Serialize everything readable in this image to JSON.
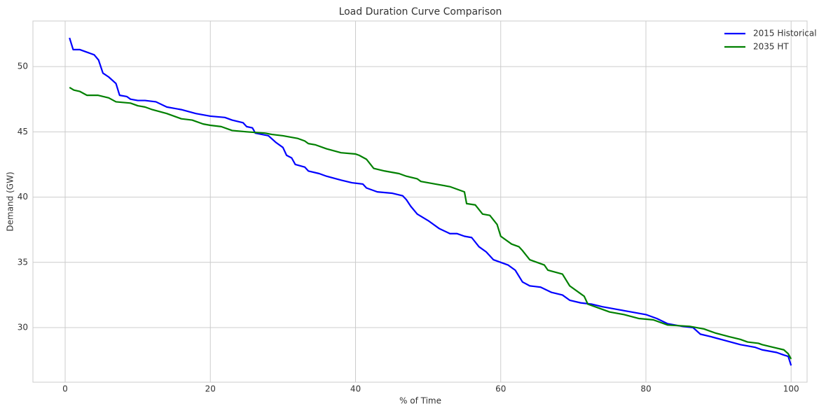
{
  "chart_data": {
    "type": "line",
    "title": "Load Duration Curve Comparison",
    "xlabel": "% of Time",
    "ylabel": "Demand (GW)",
    "xlim": [
      -4.44,
      102.2
    ],
    "ylim": [
      25.82,
      53.49
    ],
    "xticks": [
      0,
      20,
      40,
      60,
      80,
      100
    ],
    "yticks": [
      30,
      35,
      40,
      45,
      50
    ],
    "grid": true,
    "legend": "upper right",
    "series": [
      {
        "name": "2015 Historical",
        "color": "#0000ff",
        "x": [
          0.6,
          1.1,
          2,
          3,
          4,
          4.6,
          5.2,
          6,
          7,
          7.5,
          8.5,
          9,
          10,
          11,
          12.5,
          14,
          16,
          18,
          20,
          22,
          23,
          24.5,
          25,
          25.8,
          26.2,
          28,
          29,
          30,
          30.5,
          31.2,
          31.7,
          33,
          33.5,
          35,
          36,
          38,
          39.5,
          41,
          41.5,
          43,
          45,
          46.5,
          47,
          47.6,
          48.5,
          50,
          51.5,
          53,
          54,
          55,
          56,
          57,
          58,
          59,
          60,
          61,
          62,
          63,
          64,
          65.5,
          67,
          68.5,
          69.5,
          71,
          72.5,
          74,
          76,
          78,
          80,
          81.5,
          83,
          85,
          86.5,
          87.5,
          89,
          91,
          93,
          95,
          96,
          98,
          99,
          99.6,
          100
        ],
        "values": [
          52.2,
          51.3,
          51.3,
          51.1,
          50.9,
          50.5,
          49.5,
          49.2,
          48.7,
          47.8,
          47.7,
          47.5,
          47.4,
          47.4,
          47.3,
          46.9,
          46.7,
          46.4,
          46.2,
          46.1,
          45.9,
          45.7,
          45.4,
          45.3,
          44.9,
          44.7,
          44.2,
          43.8,
          43.2,
          43.0,
          42.5,
          42.3,
          42.0,
          41.8,
          41.6,
          41.3,
          41.1,
          41.0,
          40.7,
          40.4,
          40.3,
          40.1,
          39.8,
          39.3,
          38.7,
          38.2,
          37.6,
          37.2,
          37.2,
          37.0,
          36.9,
          36.2,
          35.8,
          35.2,
          35.0,
          34.8,
          34.4,
          33.5,
          33.2,
          33.1,
          32.7,
          32.5,
          32.1,
          31.9,
          31.8,
          31.6,
          31.4,
          31.2,
          31.0,
          30.7,
          30.3,
          30.1,
          30.0,
          29.5,
          29.3,
          29.0,
          28.7,
          28.5,
          28.3,
          28.1,
          27.9,
          27.8,
          27.1
        ]
      },
      {
        "name": "2035 HT",
        "color": "#008000",
        "x": [
          0.6,
          1.2,
          2,
          3,
          4.5,
          6,
          7,
          9,
          10,
          11,
          12,
          14,
          16,
          17.5,
          19,
          20,
          21.5,
          23,
          25,
          27.5,
          28.5,
          30,
          31,
          32,
          33,
          33.5,
          34.5,
          36,
          38,
          40,
          40.5,
          41.5,
          42.5,
          44,
          46,
          47,
          48.5,
          49,
          51,
          53,
          55,
          55.3,
          56.5,
          57.5,
          58.5,
          59.5,
          60,
          61.5,
          62.5,
          63,
          64,
          65,
          66,
          66.5,
          68.5,
          69.5,
          71,
          71.5,
          72,
          73.5,
          75,
          77,
          79,
          81,
          82.5,
          83,
          86,
          88,
          89.5,
          91.5,
          93,
          94,
          95.5,
          96,
          97.5,
          99,
          99.6,
          100
        ],
        "values": [
          48.4,
          48.2,
          48.1,
          47.8,
          47.8,
          47.6,
          47.3,
          47.2,
          47.0,
          46.9,
          46.7,
          46.4,
          46.0,
          45.9,
          45.6,
          45.5,
          45.4,
          45.1,
          45.0,
          44.9,
          44.8,
          44.7,
          44.6,
          44.5,
          44.3,
          44.1,
          44.0,
          43.7,
          43.4,
          43.3,
          43.2,
          42.9,
          42.2,
          42.0,
          41.8,
          41.6,
          41.4,
          41.2,
          41.0,
          40.8,
          40.4,
          39.5,
          39.4,
          38.7,
          38.6,
          37.9,
          37.0,
          36.4,
          36.2,
          35.9,
          35.2,
          35.0,
          34.8,
          34.4,
          34.1,
          33.2,
          32.6,
          32.4,
          31.8,
          31.5,
          31.2,
          31.0,
          30.7,
          30.6,
          30.3,
          30.2,
          30.1,
          29.9,
          29.6,
          29.3,
          29.1,
          28.9,
          28.8,
          28.7,
          28.5,
          28.3,
          28.0,
          27.6
        ]
      }
    ]
  }
}
